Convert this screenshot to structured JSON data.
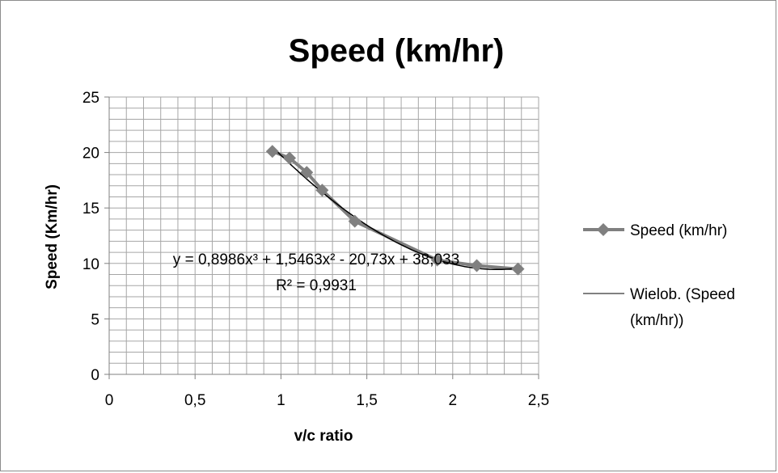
{
  "chart_data": {
    "type": "scatter",
    "title": "Speed (km/hr)",
    "xlabel": "v/c ratio",
    "ylabel": "Speed (Km/hr)",
    "xlim": [
      0,
      2.5
    ],
    "ylim": [
      0,
      25
    ],
    "x_ticks": [
      "0",
      "0,5",
      "1",
      "1,5",
      "2",
      "2,5"
    ],
    "y_ticks": [
      "0",
      "5",
      "10",
      "15",
      "20",
      "25"
    ],
    "grid": true,
    "legend_position": "right",
    "series": [
      {
        "name": "Speed (km/hr)",
        "marker": "diamond",
        "color": "#808080",
        "x": [
          0.95,
          1.05,
          1.15,
          1.24,
          1.43,
          1.91,
          2.14,
          2.38
        ],
        "y": [
          20.1,
          19.5,
          18.2,
          16.6,
          13.8,
          10.3,
          9.8,
          9.5
        ]
      }
    ],
    "trendline": {
      "name_line1": "Wielob. (Speed",
      "name_line2": "(km/hr))",
      "type": "polynomial",
      "order": 3,
      "color": "#000000",
      "equation": "y = 0,8986x³ + 1,5463x² - 20,73x + 38,033",
      "r_squared": "R² = 0,9931"
    }
  }
}
